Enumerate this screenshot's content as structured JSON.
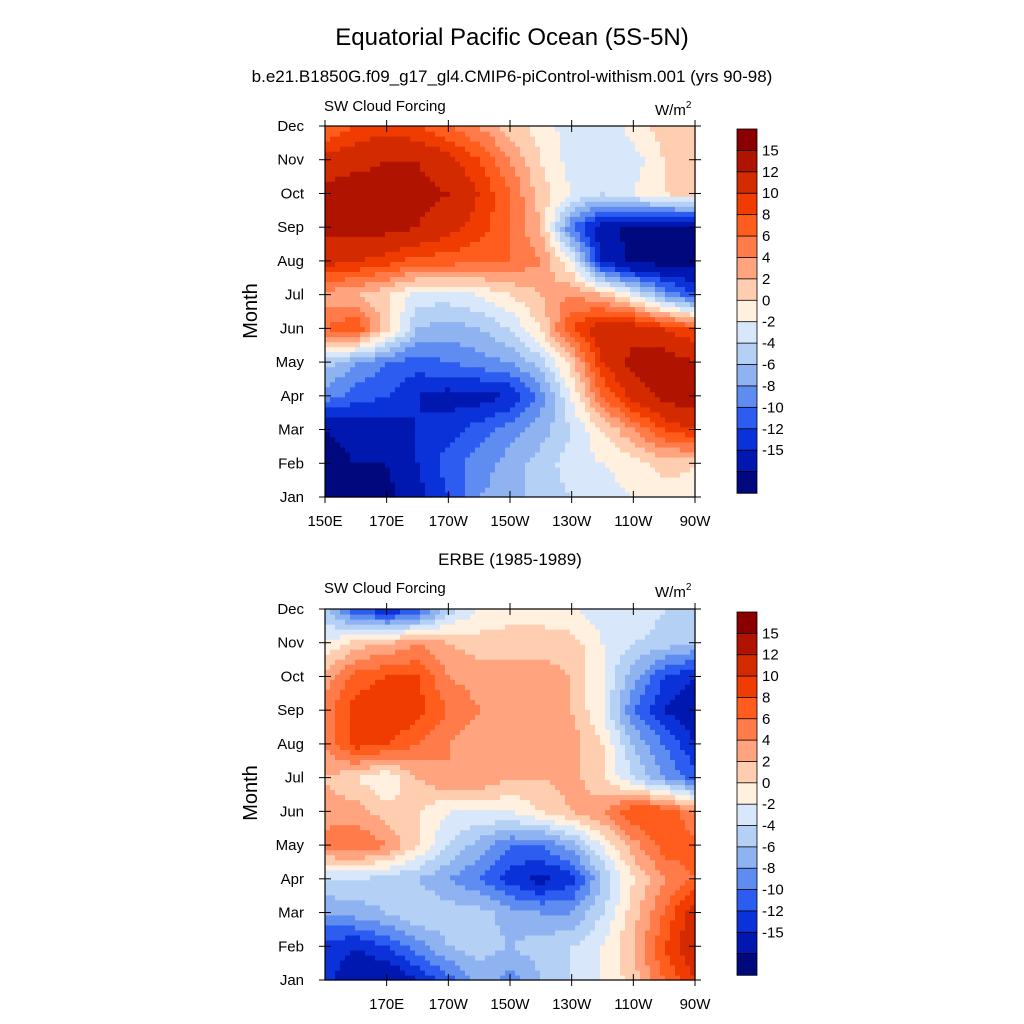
{
  "figure": {
    "title": "Equatorial Pacific Ocean (5S-5N)",
    "subtitle": "b.e21.B1850G.f09_g17_gl4.CMIP6-piControl-withism.001 (yrs 90-98)"
  },
  "colorbar": {
    "labels": [
      "15",
      "12",
      "10",
      "8",
      "6",
      "4",
      "2",
      "0",
      "-2",
      "-4",
      "-6",
      "-8",
      "-10",
      "-12",
      "-15"
    ],
    "colors_top_to_bottom": [
      "#8a0000",
      "#b01400",
      "#d42a00",
      "#f03c00",
      "#ff5d1e",
      "#ff7c4a",
      "#ffa47e",
      "#ffcdb0",
      "#fff0e0",
      "#d8e8fa",
      "#b5d0f5",
      "#8eb3f0",
      "#5e8cf0",
      "#2d5cf0",
      "#0b32d8",
      "#0018b0",
      "#00087e"
    ]
  },
  "chart_data": [
    {
      "type": "heatmap",
      "title": "",
      "left_label": "SW Cloud Forcing",
      "units_label": "W/m",
      "units_sup": "2",
      "ylabel": "Month",
      "xlabel": "",
      "x_tick_labels": [
        "150E",
        "170E",
        "170W",
        "150W",
        "130W",
        "110W",
        "90W"
      ],
      "x_tick_values": [
        150,
        170,
        190,
        210,
        230,
        250,
        270
      ],
      "xlim": [
        150,
        270
      ],
      "y_tick_labels": [
        "Jan",
        "Feb",
        "Mar",
        "Apr",
        "May",
        "Jun",
        "Jul",
        "Aug",
        "Sep",
        "Oct",
        "Nov",
        "Dec"
      ],
      "y_tick_values": [
        1,
        2,
        3,
        4,
        5,
        6,
        7,
        8,
        9,
        10,
        11,
        12
      ],
      "ylim": [
        1,
        12
      ],
      "grid_lon": [
        150,
        160,
        170,
        180,
        190,
        200,
        210,
        220,
        230,
        240,
        250,
        260,
        270
      ],
      "grid_month": [
        1,
        2,
        3,
        4,
        5,
        6,
        7,
        8,
        9,
        10,
        11,
        12
      ],
      "values": [
        [
          -16,
          -16,
          -16,
          -13,
          -10,
          -6,
          -5,
          -3,
          -2,
          -1,
          0,
          1,
          1
        ],
        [
          -16,
          -15,
          -15,
          -12,
          -9,
          -7,
          -5,
          -3,
          -1,
          0,
          1,
          3,
          2
        ],
        [
          -15,
          -14,
          -13,
          -12,
          -11,
          -9,
          -7,
          -5,
          -2,
          2,
          6,
          10,
          12
        ],
        [
          -7,
          -9,
          -10,
          -12,
          -13,
          -13,
          -12,
          -7,
          0,
          8,
          13,
          16,
          17
        ],
        [
          -3,
          -6,
          -8,
          -9,
          -8,
          -7,
          -6,
          -3,
          3,
          12,
          16,
          17,
          15
        ],
        [
          8,
          10,
          3,
          -4,
          -5,
          -4,
          -2,
          2,
          10,
          14,
          14,
          12,
          10
        ],
        [
          5,
          4,
          2,
          -1,
          -1,
          0,
          2,
          4,
          6,
          4,
          0,
          -6,
          -10
        ],
        [
          13,
          12,
          11,
          9,
          9,
          8,
          8,
          6,
          0,
          -12,
          -16,
          -16,
          -16
        ],
        [
          16,
          16,
          16,
          15,
          13,
          11,
          8,
          4,
          -8,
          -14,
          -16,
          -16,
          -16
        ],
        [
          16,
          17,
          16,
          16,
          15,
          12,
          8,
          3,
          0,
          -2,
          0,
          2,
          3
        ],
        [
          13,
          14,
          15,
          15,
          13,
          10,
          6,
          2,
          -1,
          -2,
          -1,
          2,
          2
        ],
        [
          8,
          10,
          11,
          10,
          8,
          6,
          3,
          1,
          -1,
          -2,
          1,
          3,
          2
        ]
      ]
    },
    {
      "type": "heatmap",
      "title": "ERBE (1985-1989)",
      "left_label": "SW Cloud Forcing",
      "units_label": "W/m",
      "units_sup": "2",
      "ylabel": "Month",
      "xlabel": "",
      "x_tick_labels": [
        "170E",
        "170W",
        "150W",
        "130W",
        "110W",
        "90W"
      ],
      "x_tick_values": [
        170,
        190,
        210,
        230,
        250,
        270
      ],
      "xlim": [
        150,
        270
      ],
      "y_tick_labels": [
        "Jan",
        "Feb",
        "Mar",
        "Apr",
        "May",
        "Jun",
        "Jul",
        "Aug",
        "Sep",
        "Oct",
        "Nov",
        "Dec"
      ],
      "y_tick_values": [
        1,
        2,
        3,
        4,
        5,
        6,
        7,
        8,
        9,
        10,
        11,
        12
      ],
      "ylim": [
        1,
        12
      ],
      "grid_lon": [
        150,
        160,
        170,
        180,
        190,
        200,
        210,
        220,
        230,
        240,
        250,
        260,
        270
      ],
      "grid_month": [
        1,
        2,
        3,
        4,
        5,
        6,
        7,
        8,
        9,
        10,
        11,
        12
      ],
      "values": [
        [
          -11,
          -14,
          -15,
          -12,
          -9,
          -5,
          -7,
          -4,
          -2,
          0,
          3,
          8,
          12
        ],
        [
          -11,
          -12,
          -10,
          -7,
          -4,
          -3,
          -4,
          -3,
          -2,
          0,
          4,
          10,
          14
        ],
        [
          -6,
          -5,
          -4,
          -2,
          -3,
          -3,
          -5,
          -6,
          -6,
          -2,
          3,
          8,
          14
        ],
        [
          -2,
          -2,
          -3,
          -4,
          -6,
          -8,
          -11,
          -13,
          -11,
          -4,
          2,
          6,
          8
        ],
        [
          7,
          8,
          6,
          2,
          -2,
          -5,
          -8,
          -8,
          -5,
          0,
          5,
          9,
          9
        ],
        [
          5,
          5,
          3,
          2,
          0,
          0,
          0,
          2,
          4,
          6,
          10,
          10,
          6
        ],
        [
          4,
          2,
          0,
          4,
          6,
          6,
          4,
          4,
          5,
          2,
          -2,
          -6,
          -9
        ],
        [
          6,
          11,
          10,
          8,
          6,
          4,
          5,
          6,
          5,
          2,
          -4,
          -8,
          -12
        ],
        [
          7,
          11,
          12,
          11,
          8,
          6,
          6,
          6,
          4,
          0,
          -8,
          -12,
          -14
        ],
        [
          5,
          9,
          10,
          10,
          6,
          5,
          5,
          5,
          4,
          0,
          -5,
          -10,
          -12
        ],
        [
          0,
          3,
          4,
          6,
          4,
          3,
          3,
          3,
          3,
          0,
          -2,
          -3,
          -4
        ],
        [
          -3,
          -10,
          -12,
          -10,
          -3,
          0,
          1,
          1,
          0,
          -1,
          0,
          -2,
          -3
        ]
      ]
    }
  ]
}
